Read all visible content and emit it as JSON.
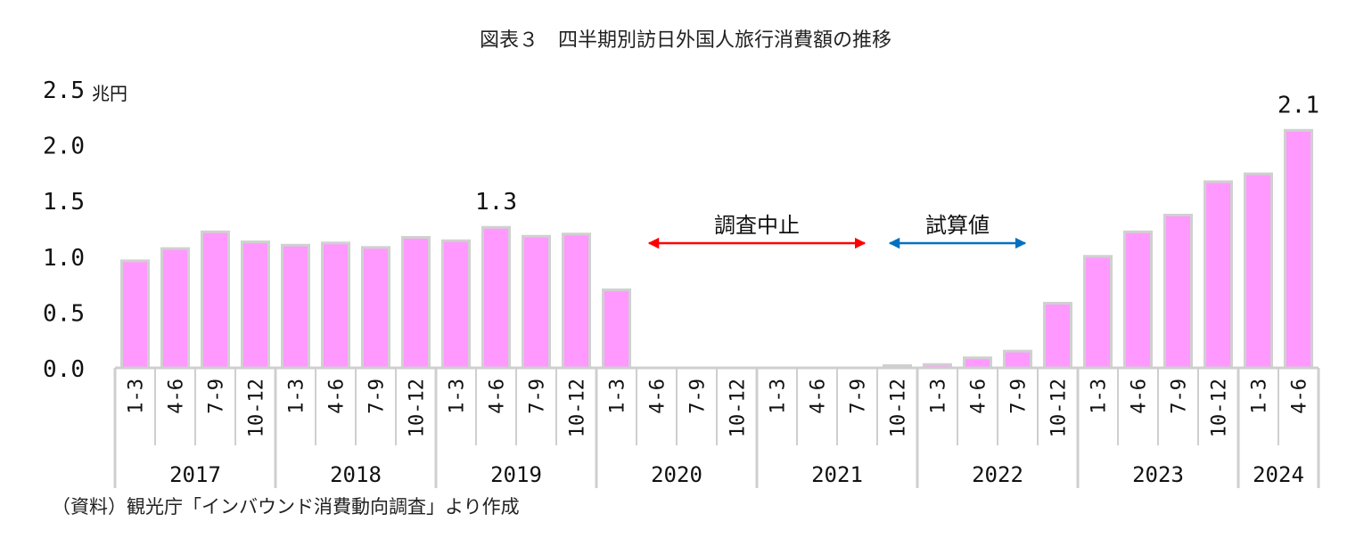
{
  "chart_data": {
    "type": "bar",
    "title": "図表３　四半期別訪日外国人旅行消費額の推移",
    "unit": "兆円",
    "ylim": [
      0,
      2.5
    ],
    "yticks": [
      "0.0",
      "0.5",
      "1.0",
      "1.5",
      "2.0",
      "2.5"
    ],
    "bar_color": "#ff99ff",
    "bar_edge": "#d0d0d0",
    "years": [
      {
        "label": "2017",
        "quarters": [
          "1-3",
          "4-6",
          "7-9",
          "10-12"
        ]
      },
      {
        "label": "2018",
        "quarters": [
          "1-3",
          "4-6",
          "7-9",
          "10-12"
        ]
      },
      {
        "label": "2019",
        "quarters": [
          "1-3",
          "4-6",
          "7-9",
          "10-12"
        ]
      },
      {
        "label": "2020",
        "quarters": [
          "1-3",
          "4-6",
          "7-9",
          "10-12"
        ]
      },
      {
        "label": "2021",
        "quarters": [
          "1-3",
          "4-6",
          "7-9",
          "10-12"
        ]
      },
      {
        "label": "2022",
        "quarters": [
          "1-3",
          "4-6",
          "7-9",
          "10-12"
        ]
      },
      {
        "label": "2023",
        "quarters": [
          "1-3",
          "4-6",
          "7-9",
          "10-12"
        ]
      },
      {
        "label": "2024",
        "quarters": [
          "1-3",
          "4-6"
        ]
      }
    ],
    "values": [
      0.96,
      1.07,
      1.22,
      1.13,
      1.1,
      1.12,
      1.08,
      1.17,
      1.14,
      1.26,
      1.18,
      1.2,
      0.7,
      0.0,
      0.0,
      0.0,
      0.0,
      0.0,
      0.0,
      0.02,
      0.03,
      0.09,
      0.15,
      0.58,
      1.0,
      1.22,
      1.37,
      1.67,
      1.74,
      2.13
    ],
    "data_labels": [
      {
        "index": 9,
        "text": "1.3"
      },
      {
        "index": 29,
        "text": "2.1"
      }
    ],
    "annotations": [
      {
        "text": "調査中止",
        "from_index": 13,
        "to_index": 18,
        "color": "#ff0000"
      },
      {
        "text": "試算値",
        "from_index": 19,
        "to_index": 22,
        "color": "#0070c0"
      }
    ]
  },
  "source": "（資料）観光庁「インバウンド消費動向調査」より作成"
}
